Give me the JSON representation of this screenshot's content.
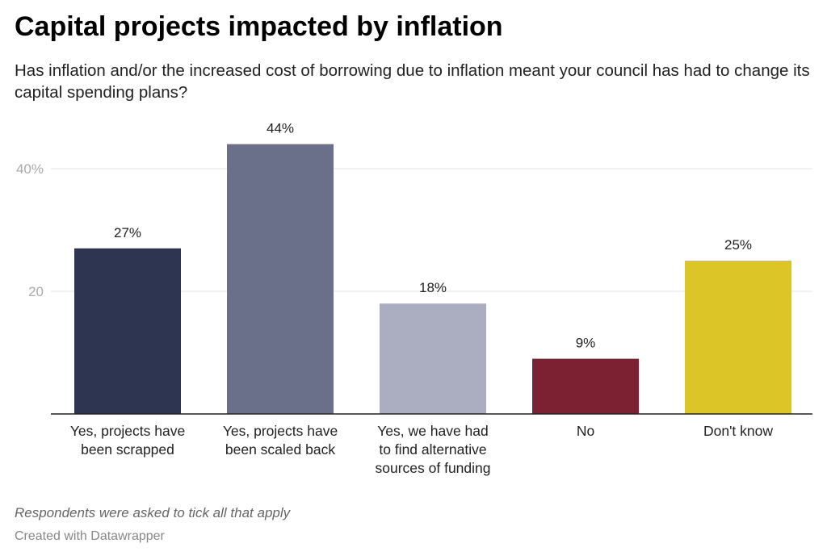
{
  "title": "Capital projects impacted by inflation",
  "subtitle": "Has inflation and/or the increased cost of borrowing due to inflation meant your council has had to change its capital spending plans?",
  "notes": "Respondents were asked to tick all that apply",
  "credit": "Created with Datawrapper",
  "chart_data": {
    "type": "bar",
    "categories": [
      [
        "Yes, projects have",
        "been scrapped"
      ],
      [
        "Yes, projects have",
        "been scaled back"
      ],
      [
        "Yes, we have had",
        "to find alternative",
        "sources of funding"
      ],
      [
        "No"
      ],
      [
        "Don't know"
      ]
    ],
    "values": [
      27,
      44,
      18,
      9,
      25
    ],
    "data_labels": [
      "27%",
      "44%",
      "18%",
      "9%",
      "25%"
    ],
    "colors": [
      "#2d3550",
      "#6a7089",
      "#abadc1",
      "#7c2132",
      "#dcc627"
    ],
    "yticks": [
      20,
      40
    ],
    "ytick_labels": [
      "20",
      "40%"
    ],
    "ylim": [
      0,
      44
    ],
    "grid": true,
    "xlabel": "",
    "ylabel": ""
  }
}
